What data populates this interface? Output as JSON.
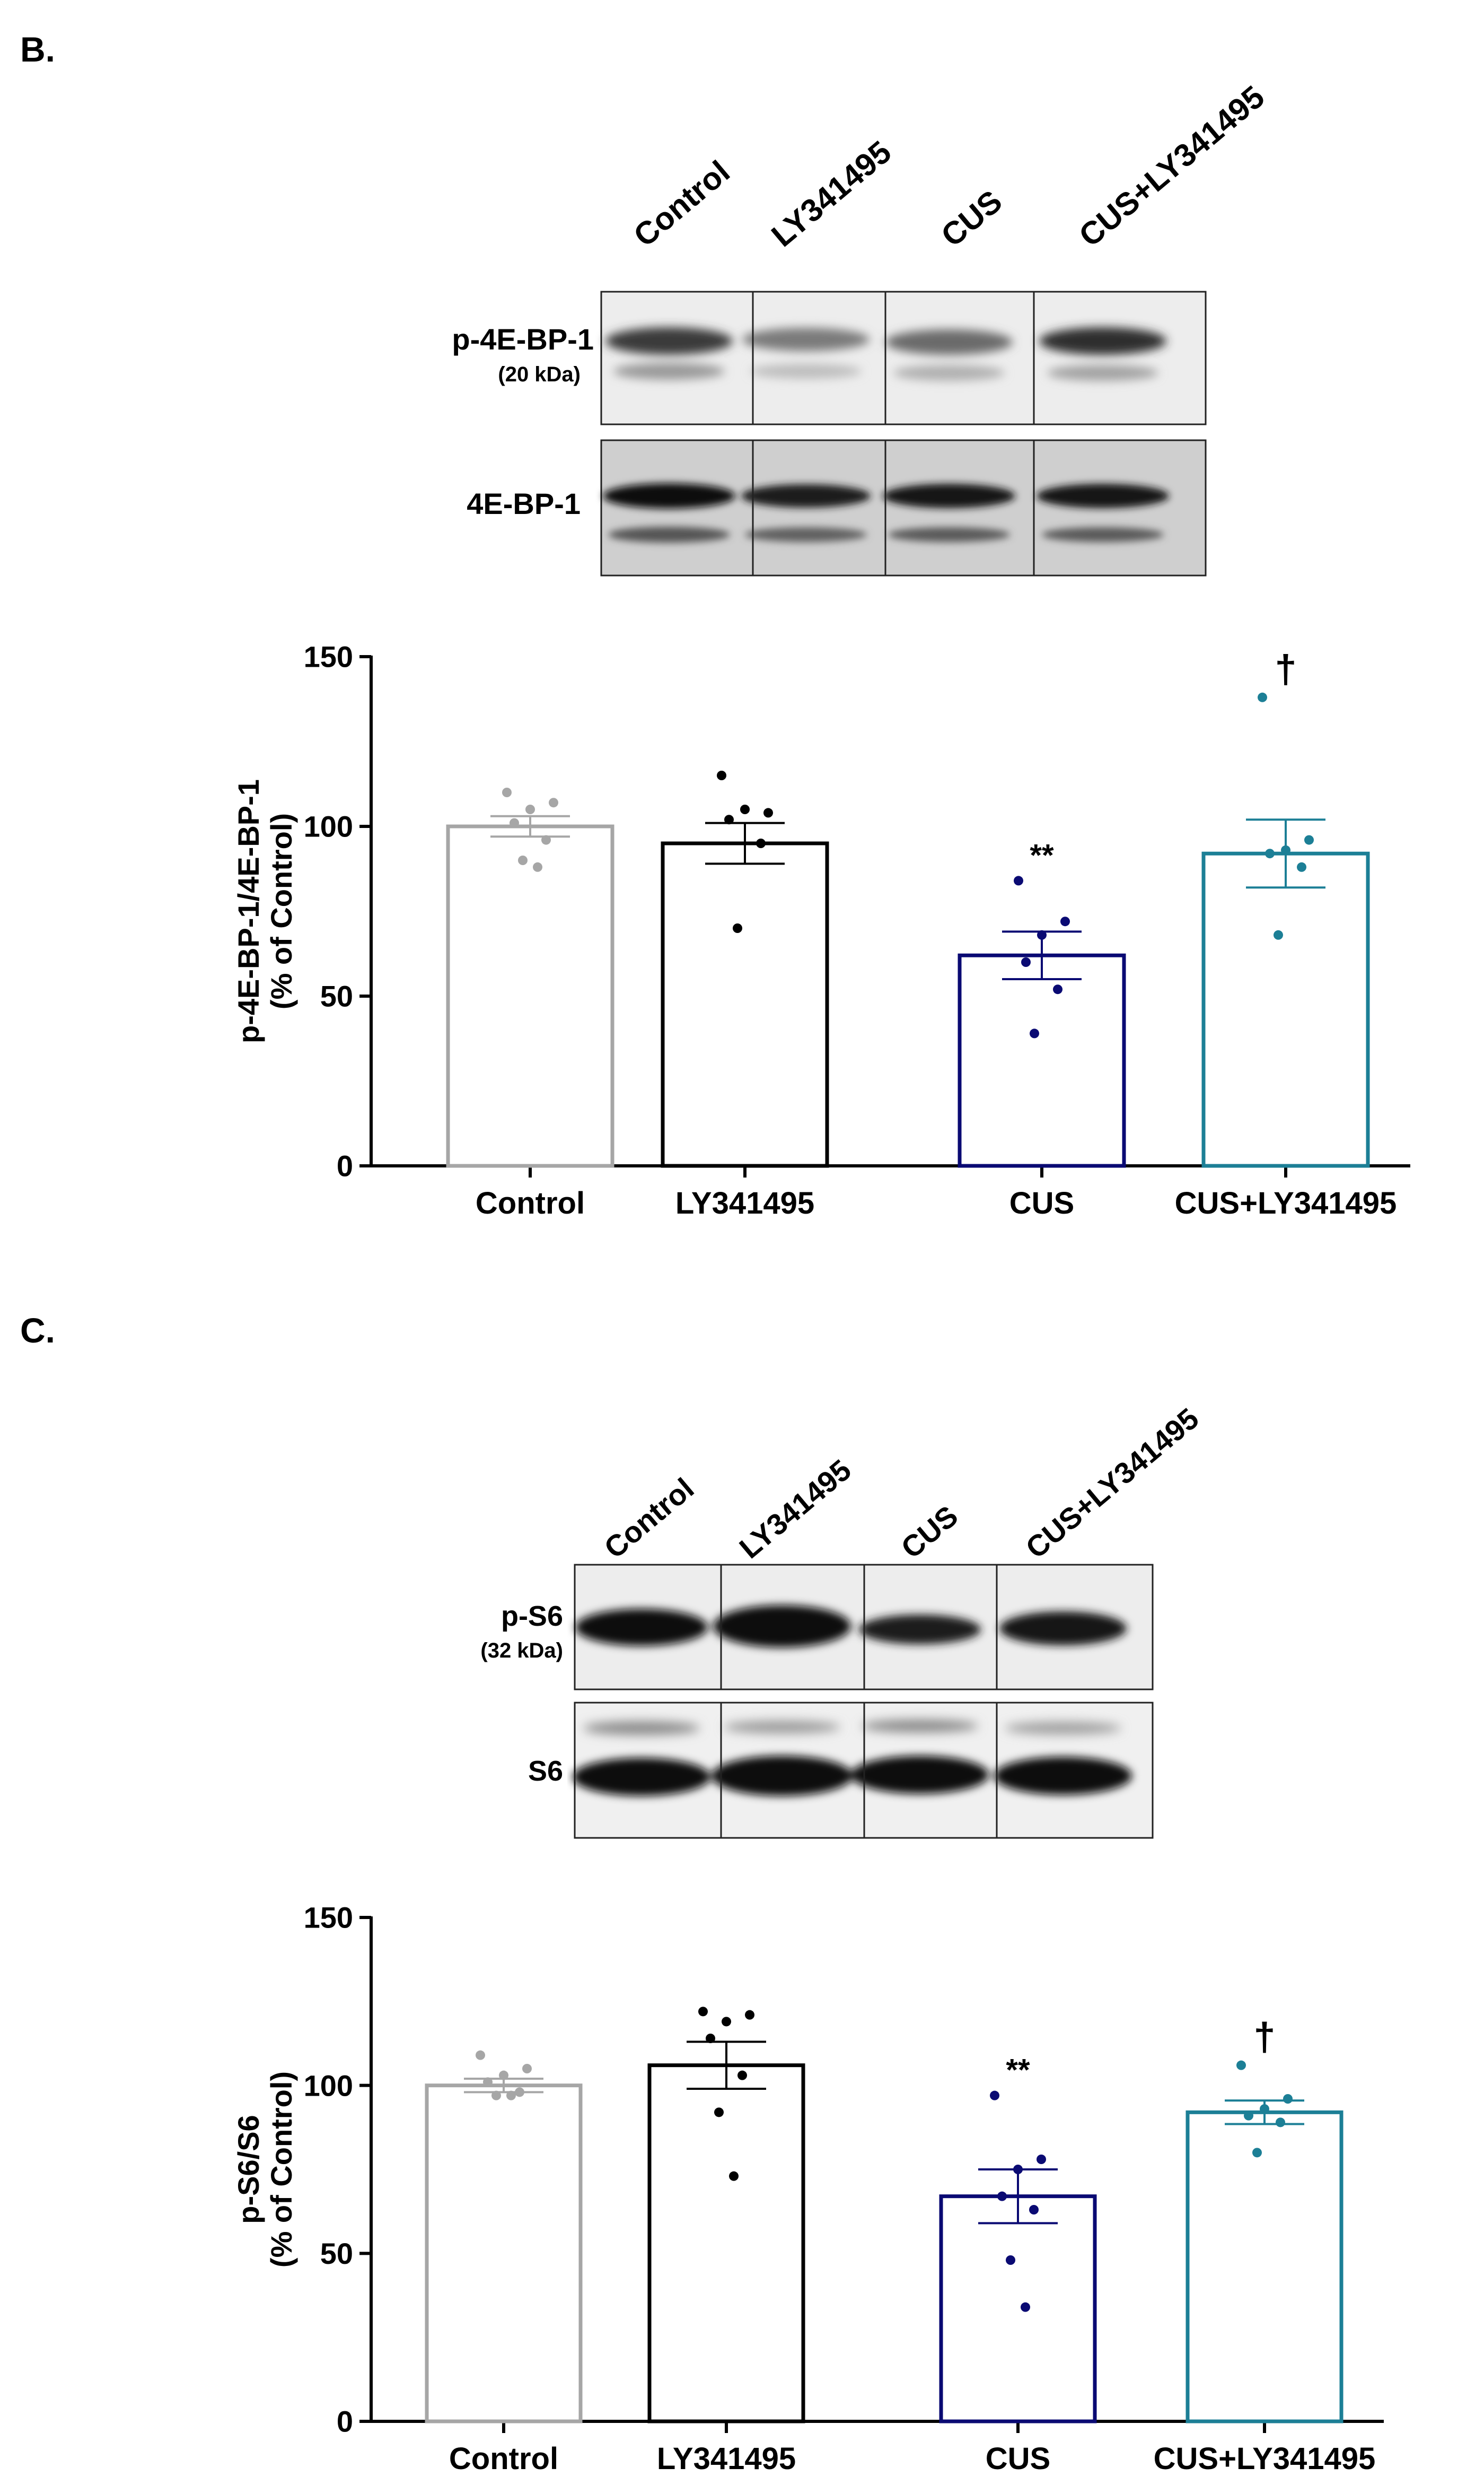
{
  "panels": [
    {
      "letter": "B.",
      "lanes": [
        "Control",
        "LY341495",
        "CUS",
        "CUS+LY341495"
      ],
      "blots": [
        {
          "label": "p-4E-BP-1",
          "sublabel": "(20 kDa)"
        },
        {
          "label": "4E-BP-1",
          "sublabel": ""
        }
      ]
    },
    {
      "letter": "C.",
      "lanes": [
        "Control",
        "LY341495",
        "CUS",
        "CUS+LY341495"
      ],
      "blots": [
        {
          "label": "p-S6",
          "sublabel": "(32 kDa)"
        },
        {
          "label": "S6",
          "sublabel": ""
        }
      ]
    }
  ],
  "colors": {
    "control": "#a6a6a6",
    "ly341495": "#000000",
    "cus": "#0a0a73",
    "cus_ly": "#1c7f96"
  },
  "chart_data": [
    {
      "type": "bar",
      "ylabel_line1": "p-4E-BP-1/4E-BP-1",
      "ylabel_line2": "(% of Control)",
      "ylim": [
        0,
        150
      ],
      "yticks": [
        0,
        50,
        100,
        150
      ],
      "categories": [
        "Control",
        "LY341495",
        "CUS",
        "CUS+LY341495"
      ],
      "values": [
        100,
        95,
        62,
        92
      ],
      "sem": [
        3,
        6,
        7,
        10
      ],
      "points": [
        [
          110,
          107,
          105,
          101,
          96,
          90,
          88
        ],
        [
          115,
          104,
          105,
          102,
          95,
          70
        ],
        [
          84,
          72,
          68,
          60,
          52,
          39
        ],
        [
          138,
          96,
          93,
          92,
          88,
          68
        ]
      ],
      "annotations": [
        "",
        "",
        "**",
        "†"
      ],
      "grid": false
    },
    {
      "type": "bar",
      "ylabel_line1": "p-S6/S6",
      "ylabel_line2": "(% of Control)",
      "ylim": [
        0,
        150
      ],
      "yticks": [
        0,
        50,
        100,
        150
      ],
      "categories": [
        "Control",
        "LY341495",
        "CUS",
        "CUS+LY341495"
      ],
      "values": [
        100,
        106,
        67,
        92
      ],
      "sem": [
        2,
        7,
        8,
        3.5
      ],
      "points": [
        [
          109,
          105,
          103,
          101,
          98,
          97,
          97
        ],
        [
          122,
          121,
          119,
          114,
          103,
          92,
          73
        ],
        [
          97,
          78,
          75,
          67,
          63,
          48,
          34
        ],
        [
          106,
          96,
          93,
          91,
          89,
          80
        ]
      ],
      "annotations": [
        "",
        "",
        "**",
        "†"
      ],
      "grid": false
    }
  ]
}
